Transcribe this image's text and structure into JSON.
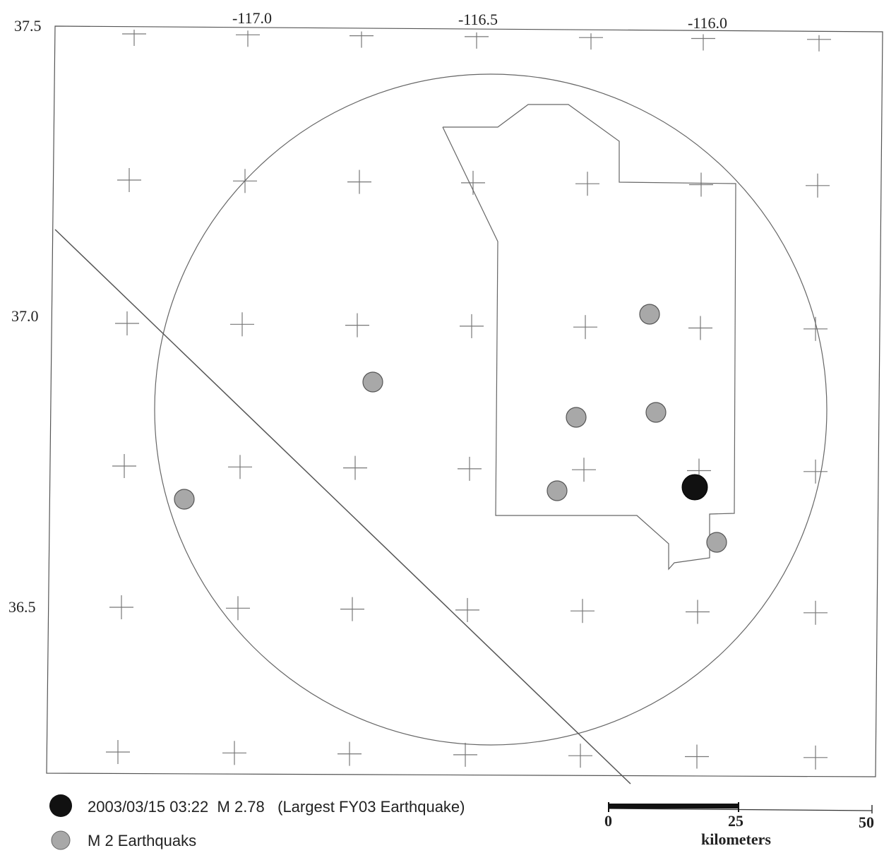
{
  "map": {
    "lon_labels": [
      "-117.0",
      "-116.5",
      "-116.0"
    ],
    "lat_labels": [
      "37.5",
      "37.0",
      "36.5"
    ],
    "colors": {
      "frame": "#555555",
      "boundary": "#666666",
      "fault": "#555555",
      "graticule": "#777777",
      "largest_event_fill": "#111111",
      "small_event_fill": "#a8a8a8",
      "small_event_stroke": "#555555"
    }
  },
  "legend": {
    "largest": {
      "date": "2003/03/15 03:22",
      "magnitude": "M  2.78",
      "note": "(Largest FY03 Earthquake)"
    },
    "small": {
      "label": "M  2 Earthquaks"
    }
  },
  "scale_bar": {
    "ticks": [
      "0",
      "25",
      "50"
    ],
    "unit": "kilometers"
  }
}
